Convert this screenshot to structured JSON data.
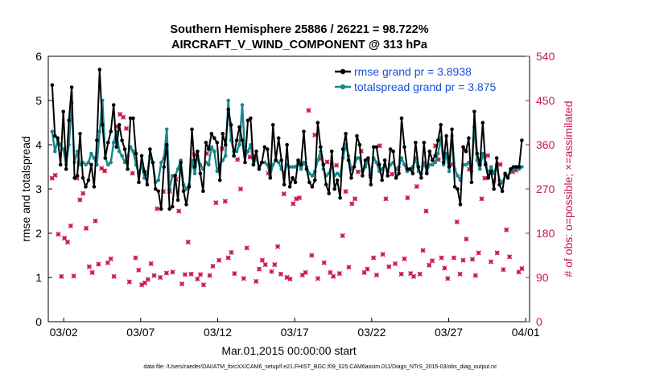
{
  "chart_data": {
    "type": "line",
    "title": "Southern Hemisphere 25886 / 26221 = 98.722%",
    "subtitle": "AIRCRAFT_V_WIND_COMPONENT @ 313 hPa",
    "xlabel": "Mar.01,2015 00:00:00 start",
    "ylabel": "rmse and totalspread",
    "y2label": "# of obs: o=possible; ×=assimilated",
    "footnote": "data file: /Users/raeder/DAI/ATM_forcXX/CAM6_setup/f.e21.FHIST_BGC.f09_025.CAM6assim.011/Diags_NTrS_2015-03/obs_diag_output.nc",
    "x_tick_labels": [
      "03/02",
      "03/07",
      "03/12",
      "03/17",
      "03/22",
      "03/27",
      "04/01"
    ],
    "x_tick_days": [
      1,
      6,
      11,
      16,
      21,
      26,
      31
    ],
    "xlim_days": [
      0,
      31.25
    ],
    "ylim": [
      0,
      6
    ],
    "y_ticks": [
      "0",
      "1",
      "2",
      "3",
      "4",
      "5",
      "6"
    ],
    "y2lim": [
      0,
      540
    ],
    "y2_ticks": [
      "0",
      "90",
      "180",
      "270",
      "360",
      "450",
      "540"
    ],
    "legend_position": "top-right",
    "colors": {
      "rmse": "#000000",
      "spread": "#17878c",
      "obs": "#c8174f",
      "legend_text": "#1a4fd6"
    },
    "series": [
      {
        "name": "rmse grand pr = 3.8938",
        "color": "#000000",
        "values": [
          5.35,
          4.2,
          4.15,
          3.55,
          4.75,
          3.45,
          4.55,
          5.3,
          3.25,
          3.3,
          4.25,
          3.25,
          3.05,
          3.2,
          3.55,
          3.05,
          4.1,
          5.7,
          4.45,
          3.7,
          4.05,
          4.3,
          4.9,
          3.95,
          4.45,
          4.1,
          3.9,
          3.45,
          4.6,
          4.6,
          3.8,
          3.15,
          3.75,
          3.4,
          3.1,
          3.9,
          3.6,
          3.0,
          2.95,
          2.55,
          3.5,
          4.0,
          2.55,
          2.6,
          3.3,
          2.75,
          3.6,
          2.95,
          2.65,
          3.05,
          4.35,
          3.5,
          3.85,
          3.35,
          2.95,
          4.05,
          3.9,
          4.25,
          4.15,
          4.05,
          3.2,
          4.25,
          4.0,
          4.8,
          4.45,
          3.75,
          4.1,
          4.4,
          4.1,
          3.6,
          4.55,
          4.6,
          3.55,
          3.85,
          3.45,
          3.6,
          3.95,
          3.9,
          3.25,
          4.45,
          3.65,
          4.15,
          3.65,
          3.1,
          4.0,
          3.05,
          3.25,
          3.15,
          3.65,
          3.55,
          4.3,
          3.45,
          3.15,
          3.05,
          3.2,
          4.5,
          3.95,
          3.55,
          3.1,
          2.9,
          3.85,
          3.0,
          3.2,
          2.8,
          3.9,
          4.25,
          3.65,
          3.25,
          3.5,
          4.2,
          4.0,
          3.3,
          3.65,
          3.7,
          3.1,
          3.95,
          3.95,
          3.55,
          3.2,
          3.65,
          3.3,
          3.9,
          3.85,
          3.25,
          3.35,
          4.6,
          3.95,
          3.45,
          3.45,
          3.35,
          4.05,
          3.5,
          3.25,
          4.05,
          3.35,
          3.85,
          3.65,
          3.75,
          4.1,
          4.45,
          3.6,
          4.2,
          3.5,
          4.35,
          3.05,
          3.0,
          2.65,
          3.95,
          3.85,
          4.15,
          3.15,
          4.75,
          3.8,
          3.55,
          4.5,
          3.55,
          3.25,
          3.4,
          3.0,
          3.7,
          3.1,
          2.95,
          3.35,
          3.25,
          3.45,
          3.5,
          3.5,
          3.5,
          4.1
        ]
      },
      {
        "name": "totalspread grand pr = 3.875",
        "color": "#17878c",
        "values": [
          4.3,
          3.85,
          4.1,
          4.0,
          3.9,
          3.55,
          4.0,
          4.95,
          3.6,
          3.85,
          3.55,
          3.6,
          3.55,
          3.6,
          3.8,
          3.7,
          3.55,
          4.3,
          5.0,
          3.7,
          3.55,
          3.6,
          4.05,
          4.3,
          3.85,
          3.75,
          3.6,
          3.75,
          3.95,
          3.85,
          3.55,
          3.35,
          3.55,
          3.25,
          3.35,
          3.75,
          3.6,
          3.15,
          3.2,
          3.6,
          3.7,
          4.35,
          3.0,
          3.3,
          3.3,
          3.45,
          3.65,
          3.1,
          3.0,
          3.1,
          3.65,
          3.35,
          3.75,
          3.55,
          3.45,
          3.6,
          3.55,
          3.95,
          3.85,
          3.4,
          3.55,
          3.65,
          3.75,
          5.0,
          4.1,
          3.85,
          3.85,
          4.0,
          4.9,
          3.75,
          3.85,
          4.0,
          3.55,
          3.7,
          3.5,
          3.6,
          3.6,
          3.55,
          3.3,
          3.55,
          3.65,
          3.6,
          3.45,
          3.35,
          3.55,
          3.5,
          3.5,
          3.5,
          3.6,
          3.45,
          3.6,
          3.5,
          3.35,
          3.3,
          3.4,
          3.65,
          3.85,
          3.45,
          3.3,
          3.35,
          3.55,
          3.3,
          3.35,
          3.3,
          3.7,
          4.0,
          3.75,
          3.45,
          3.5,
          3.7,
          3.7,
          3.4,
          3.5,
          3.65,
          3.35,
          3.7,
          3.6,
          3.4,
          3.45,
          3.55,
          3.4,
          3.55,
          3.6,
          3.45,
          3.5,
          3.7,
          3.55,
          3.4,
          3.45,
          3.5,
          3.7,
          3.4,
          3.35,
          3.6,
          3.4,
          3.55,
          3.55,
          3.6,
          3.8,
          4.15,
          3.55,
          3.8,
          3.4,
          4.2,
          3.45,
          3.3,
          3.2,
          3.55,
          3.55,
          3.6,
          3.4,
          4.4,
          3.65,
          3.45,
          3.8,
          3.6,
          3.35,
          3.5,
          3.35,
          3.55,
          3.2,
          3.15,
          3.3,
          3.3,
          3.4,
          3.45,
          3.5,
          3.45,
          3.5
        ]
      }
    ],
    "obs_counts": {
      "name": "# of obs",
      "assimilated": [
        292,
        298,
        178,
        92,
        170,
        162,
        195,
        93,
        292,
        248,
        261,
        190,
        112,
        100,
        205,
        117,
        312,
        307,
        120,
        128,
        92,
        397,
        422,
        416,
        393,
        81,
        302,
        130,
        105,
        75,
        79,
        86,
        118,
        94,
        230,
        90,
        265,
        99,
        265,
        101,
        290,
        225,
        77,
        96,
        162,
        97,
        340,
        87,
        96,
        75,
        342,
        94,
        113,
        242,
        125,
        352,
        245,
        130,
        141,
        98,
        330,
        270,
        88,
        150,
        335,
        337,
        82,
        107,
        125,
        116,
        302,
        102,
        116,
        153,
        97,
        260,
        90,
        87,
        240,
        250,
        252,
        95,
        100,
        430,
        135,
        380,
        88,
        332,
        120,
        325,
        100,
        92,
        318,
        98,
        175,
        265,
        111,
        240,
        250,
        305,
        347,
        100,
        107,
        297,
        130,
        95,
        358,
        137,
        250,
        112,
        300,
        118,
        310,
        97,
        128,
        252,
        98,
        92,
        275,
        97,
        145,
        225,
        115,
        124,
        358,
        330,
        130,
        109,
        88,
        320,
        130,
        203,
        97,
        125,
        168,
        310,
        127,
        94,
        140,
        250,
        292,
        338,
        122,
        287,
        140,
        320,
        106,
        187,
        132,
        305,
        308,
        101,
        108
      ]
    }
  }
}
